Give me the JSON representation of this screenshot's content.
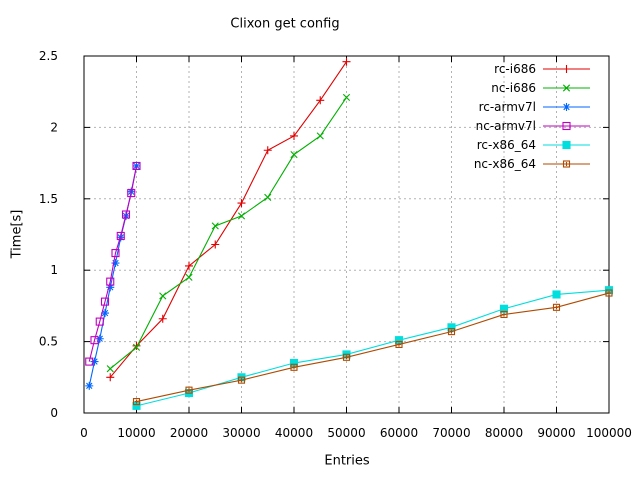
{
  "chart_data": {
    "type": "line",
    "title": "Clixon get config",
    "xlabel": "Entries",
    "ylabel": "Time[s]",
    "xlim": [
      0,
      100000
    ],
    "ylim": [
      0,
      2.5
    ],
    "grid": true,
    "legend_position": "top-right-inside",
    "xticks": [
      0,
      10000,
      20000,
      30000,
      40000,
      50000,
      60000,
      70000,
      80000,
      90000,
      100000
    ],
    "xtick_labels": [
      "0",
      "10000",
      "20000",
      "30000",
      "40000",
      "50000",
      "60000",
      "70000",
      "80000",
      "90000",
      "100000"
    ],
    "yticks": [
      0,
      0.5,
      1,
      1.5,
      2,
      2.5
    ],
    "ytick_labels": [
      "0",
      "0.5",
      "1",
      "1.5",
      "2",
      "2.5"
    ],
    "axis_color": "#000000",
    "grid_color": "#b3b3b3",
    "series": [
      {
        "name": "rc-i686",
        "color": "#e00000",
        "marker": "plus",
        "x": [
          5000,
          10000,
          15000,
          20000,
          25000,
          30000,
          35000,
          40000,
          45000,
          50000
        ],
        "y": [
          0.25,
          0.47,
          0.66,
          1.03,
          1.18,
          1.47,
          1.84,
          1.94,
          2.19,
          2.46
        ]
      },
      {
        "name": "nc-i686",
        "color": "#00b000",
        "marker": "cross",
        "x": [
          5000,
          10000,
          15000,
          20000,
          25000,
          30000,
          35000,
          40000,
          45000,
          50000
        ],
        "y": [
          0.31,
          0.46,
          0.82,
          0.95,
          1.31,
          1.38,
          1.51,
          1.81,
          1.94,
          2.21
        ]
      },
      {
        "name": "rc-armv7l",
        "color": "#0066ff",
        "marker": "asterisk",
        "x": [
          1000,
          2000,
          3000,
          4000,
          5000,
          6000,
          7000,
          8000,
          9000,
          10000
        ],
        "y": [
          0.19,
          0.36,
          0.52,
          0.7,
          0.88,
          1.05,
          1.23,
          1.38,
          1.55,
          1.73
        ]
      },
      {
        "name": "nc-armv7l",
        "color": "#c000c0",
        "marker": "open-square",
        "x": [
          1000,
          2000,
          3000,
          4000,
          5000,
          6000,
          7000,
          8000,
          9000,
          10000
        ],
        "y": [
          0.36,
          0.51,
          0.64,
          0.78,
          0.92,
          1.12,
          1.24,
          1.39,
          1.54,
          1.73
        ]
      },
      {
        "name": "rc-x86_64",
        "color": "#00dede",
        "marker": "filled-square",
        "x": [
          10000,
          20000,
          30000,
          40000,
          50000,
          60000,
          70000,
          80000,
          90000,
          100000
        ],
        "y": [
          0.05,
          0.14,
          0.25,
          0.35,
          0.41,
          0.51,
          0.6,
          0.73,
          0.83,
          0.86
        ]
      },
      {
        "name": "nc-x86_64",
        "color": "#b04a00",
        "marker": "square-plus",
        "x": [
          10000,
          20000,
          30000,
          40000,
          50000,
          60000,
          70000,
          80000,
          90000,
          100000
        ],
        "y": [
          0.08,
          0.16,
          0.23,
          0.32,
          0.39,
          0.48,
          0.57,
          0.69,
          0.74,
          0.84
        ]
      }
    ]
  }
}
